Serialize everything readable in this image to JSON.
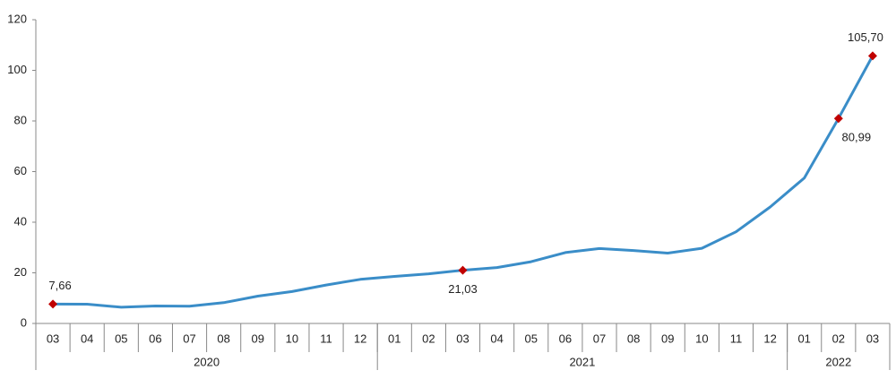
{
  "chart_data": {
    "type": "line",
    "categories": [
      "03",
      "04",
      "05",
      "06",
      "07",
      "08",
      "09",
      "10",
      "11",
      "12",
      "01",
      "02",
      "03",
      "04",
      "05",
      "06",
      "07",
      "08",
      "09",
      "10",
      "11",
      "12",
      "01",
      "02",
      "03"
    ],
    "category_groups": [
      {
        "label": "2020",
        "size": 10
      },
      {
        "label": "2021",
        "size": 12
      },
      {
        "label": "2022",
        "size": 3
      }
    ],
    "values": [
      7.66,
      7.6,
      6.4,
      6.9,
      6.8,
      8.2,
      10.8,
      12.6,
      15.2,
      17.4,
      18.6,
      19.6,
      21.03,
      22.1,
      24.4,
      28.0,
      29.6,
      28.8,
      27.8,
      29.7,
      36.2,
      46.0,
      57.5,
      80.99,
      105.7
    ],
    "value_labels": [
      "7,66",
      null,
      null,
      null,
      null,
      null,
      null,
      null,
      null,
      null,
      null,
      null,
      "21,03",
      null,
      null,
      null,
      null,
      null,
      null,
      null,
      null,
      null,
      null,
      "80,99",
      "105,70"
    ],
    "color": "#3a8dc8",
    "marker_color": "#c00000",
    "ylim": [
      0,
      120
    ],
    "yticks": [
      0,
      20,
      40,
      60,
      80,
      100,
      120
    ],
    "grid": false
  }
}
